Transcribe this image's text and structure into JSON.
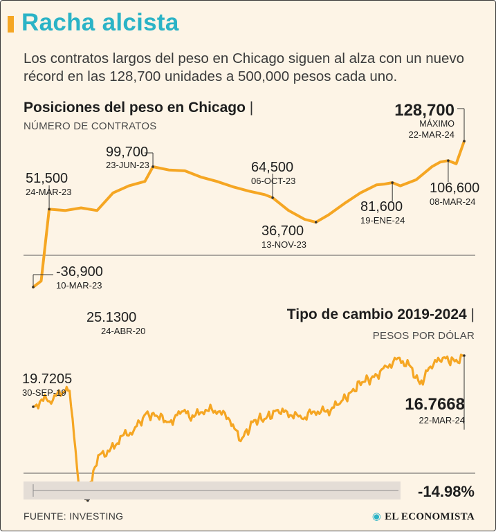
{
  "header": {
    "title": "Racha alcista",
    "subtitle": "Los contratos largos del peso en Chicago siguen al alza con un nuevo récord en las 128,700 unidades a 500,000 pesos cada uno."
  },
  "colors": {
    "accent": "#f5a623",
    "title": "#2bb3c6",
    "background": "#fdf4e6",
    "line": "#f5a623"
  },
  "footer": {
    "source": "FUENTE: INVESTING",
    "brand": "EL ECONOMISTA",
    "brand_icon": "el-economista-logo-icon"
  },
  "chart_data": [
    {
      "type": "line",
      "title": "Posiciones del peso en Chicago",
      "ylabel": "NÚMERO DE CONTRATOS",
      "xlabel": "",
      "x": [
        "2023-03-10",
        "2023-03-17",
        "2023-03-24",
        "2023-04-07",
        "2023-04-21",
        "2023-05-05",
        "2023-05-19",
        "2023-06-02",
        "2023-06-16",
        "2023-06-23",
        "2023-07-07",
        "2023-07-21",
        "2023-08-04",
        "2023-08-18",
        "2023-09-01",
        "2023-09-15",
        "2023-09-29",
        "2023-10-06",
        "2023-10-20",
        "2023-11-03",
        "2023-11-13",
        "2023-11-24",
        "2023-12-08",
        "2023-12-22",
        "2024-01-05",
        "2024-01-12",
        "2024-01-19",
        "2024-01-26",
        "2024-02-09",
        "2024-02-23",
        "2024-03-01",
        "2024-03-08",
        "2024-03-15",
        "2024-03-22"
      ],
      "values": [
        -36900,
        -30000,
        51500,
        50000,
        53000,
        50000,
        70000,
        78000,
        83000,
        99700,
        96000,
        95000,
        88000,
        83000,
        77000,
        72000,
        68000,
        64500,
        50000,
        40000,
        36700,
        45000,
        58000,
        70000,
        79000,
        80000,
        81600,
        78000,
        85000,
        100000,
        105000,
        106600,
        103000,
        128700
      ],
      "annotations": [
        {
          "label": "-36,900",
          "date": "10-MAR-23"
        },
        {
          "label": "51,500",
          "date": "24-MAR-23"
        },
        {
          "label": "99,700",
          "date": "23-JUN-23"
        },
        {
          "label": "64,500",
          "date": "06-OCT-23"
        },
        {
          "label": "36,700",
          "date": "13-NOV-23"
        },
        {
          "label": "81,600",
          "date": "19-ENE-24"
        },
        {
          "label": "106,600",
          "date": "08-MAR-24"
        },
        {
          "label": "128,700",
          "note": "MÁXIMO",
          "date": "22-MAR-24"
        }
      ],
      "ylim": [
        -40000,
        130000
      ]
    },
    {
      "type": "line",
      "title": "Tipo de cambio 2019-2024",
      "ylabel": "PESOS POR DÓLAR",
      "xlabel": "",
      "x": [
        "2019-09-30",
        "2019-11-01",
        "2019-12-01",
        "2020-01-01",
        "2020-02-15",
        "2020-03-20",
        "2020-04-24",
        "2020-05-15",
        "2020-06-15",
        "2020-07-15",
        "2020-09-01",
        "2020-10-15",
        "2020-12-01",
        "2021-01-15",
        "2021-03-01",
        "2021-04-15",
        "2021-06-01",
        "2021-07-15",
        "2021-09-01",
        "2021-10-15",
        "2021-11-25",
        "2022-01-15",
        "2022-03-01",
        "2022-04-15",
        "2022-06-01",
        "2022-07-15",
        "2022-09-01",
        "2022-10-15",
        "2022-12-01",
        "2023-01-15",
        "2023-03-01",
        "2023-04-15",
        "2023-06-01",
        "2023-07-15",
        "2023-09-01",
        "2023-10-06",
        "2023-11-15",
        "2024-01-01",
        "2024-02-15",
        "2024-03-22"
      ],
      "values": [
        19.7205,
        19.3,
        19.4,
        18.9,
        18.8,
        24.1,
        25.13,
        23.4,
        22.4,
        22.3,
        21.4,
        21.1,
        20.1,
        20.3,
        20.6,
        20.0,
        20.3,
        19.9,
        20.0,
        20.5,
        21.7,
        20.5,
        20.4,
        19.9,
        20.2,
        20.4,
        20.0,
        20.0,
        19.6,
        18.9,
        18.3,
        18.0,
        17.4,
        16.9,
        17.4,
        18.4,
        17.4,
        16.9,
        17.1,
        16.7668
      ],
      "annotations": [
        {
          "label": "19.7205",
          "date": "30-SEP-19"
        },
        {
          "label": "25.1300",
          "date": "24-ABR-20"
        },
        {
          "label": "16.7668",
          "date": "22-MAR-24"
        }
      ],
      "change_label": "-14.98%",
      "ylim": [
        16.0,
        26.0
      ]
    }
  ]
}
